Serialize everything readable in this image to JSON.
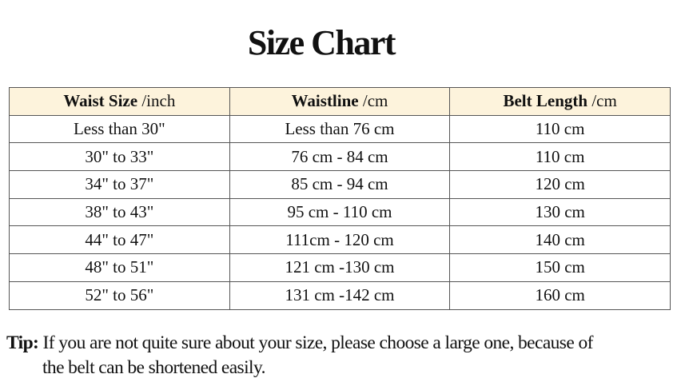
{
  "title": "Size Chart",
  "table": {
    "headers": [
      {
        "bold": "Waist Size",
        "unit": " /inch"
      },
      {
        "bold": "Waistline",
        "unit": " /cm"
      },
      {
        "bold": "Belt Length",
        "unit": " /cm"
      }
    ],
    "rows": [
      [
        "Less than 30\"",
        "Less than 76 cm",
        "110 cm"
      ],
      [
        "30\" to 33\"",
        "76 cm - 84 cm",
        "110 cm"
      ],
      [
        "34\" to 37\"",
        "85 cm - 94 cm",
        "120 cm"
      ],
      [
        "38\" to 43\"",
        "95 cm - 110 cm",
        "130 cm"
      ],
      [
        "44\" to 47\"",
        "111cm - 120 cm",
        "140 cm"
      ],
      [
        "48\" to 51\"",
        "121 cm -130 cm",
        "150 cm"
      ],
      [
        "52\" to 56\"",
        "131 cm -142 cm",
        "160 cm"
      ]
    ],
    "header_bg": "#fdf3dc"
  },
  "tip": {
    "label": "Tip:",
    "line1": " If you are not quite sure about your size, please choose a large one, because of",
    "line2": "the belt can be shortened easily."
  }
}
